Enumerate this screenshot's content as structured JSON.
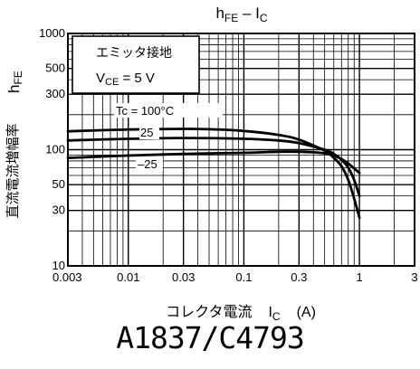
{
  "chart_data": {
    "type": "line",
    "title_main": "h",
    "title_sub1": "FE",
    "title_dash": " – I",
    "title_sub2": "C",
    "ylabel_jp": "直流電流増幅率",
    "ylabel_sym": "h",
    "ylabel_sub": "FE",
    "xlabel_jp": "コレクタ電流",
    "xlabel_sym": "I",
    "xlabel_sub": "C",
    "xlabel_unit": "(A)",
    "x_scale": "log",
    "y_scale": "log",
    "xlim": [
      0.003,
      3
    ],
    "ylim": [
      10,
      1000
    ],
    "x_tick_values": [
      0.003,
      0.01,
      0.03,
      0.1,
      0.3,
      1,
      3
    ],
    "x_tick_labels": [
      "0.003",
      "0.01",
      "0.03",
      "0.1",
      "0.3",
      "1",
      "3"
    ],
    "y_tick_values": [
      10,
      30,
      50,
      100,
      300,
      500,
      1000
    ],
    "y_tick_labels": [
      "10",
      "30",
      "50",
      "100",
      "300",
      "500",
      "1000"
    ],
    "grid": true,
    "condition_title": "エミッタ接地",
    "condition_sym": "V",
    "condition_sub": "CE",
    "condition_value": " = 5 V",
    "series": [
      {
        "name": "Tc = 100°C",
        "x": [
          0.003,
          0.01,
          0.03,
          0.05,
          0.1,
          0.2,
          0.3,
          0.5,
          0.6,
          0.7,
          0.8,
          0.9,
          1.0
        ],
        "y": [
          144,
          149,
          151,
          150,
          145,
          134,
          122,
          98,
          85,
          72,
          55,
          38,
          26
        ]
      },
      {
        "name": "25",
        "x": [
          0.003,
          0.01,
          0.03,
          0.1,
          0.2,
          0.3,
          0.5,
          0.6,
          0.7,
          0.8,
          0.9,
          1.0
        ],
        "y": [
          120,
          124,
          126,
          124,
          120,
          114,
          100,
          92,
          82,
          70,
          55,
          40
        ]
      },
      {
        "name": "–25",
        "x": [
          0.003,
          0.01,
          0.03,
          0.1,
          0.2,
          0.3,
          0.4,
          0.5,
          0.6,
          0.7,
          0.8,
          0.9,
          1.0
        ],
        "y": [
          85,
          89,
          92,
          94,
          96,
          96,
          95,
          93,
          89,
          83,
          76,
          69,
          63
        ]
      }
    ]
  },
  "part_number": "A1837/C4793"
}
